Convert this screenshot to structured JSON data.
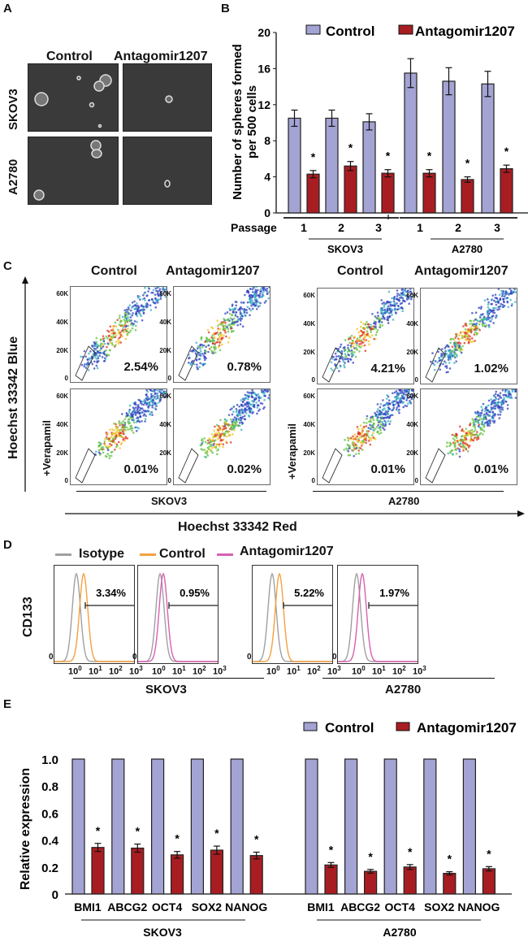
{
  "panels": {
    "A": {
      "label": "A",
      "columns": [
        "Control",
        "Antagomir1207"
      ],
      "rows": [
        "SKOV3",
        "A2780"
      ]
    },
    "B": {
      "label": "B",
      "passage_label": "Passage",
      "groups": [
        "SKOV3",
        "A2780"
      ]
    },
    "C": {
      "label": "C",
      "y_axis": "Hoechst 33342 Blue",
      "x_axis": "Hoechst 33342 Red",
      "columns": [
        "Control",
        "Antagomir1207",
        "Control",
        "Antagomir1207"
      ],
      "row_label_verapamil": "+Verapamil",
      "groups": [
        "SKOV3",
        "A2780"
      ],
      "y_ticks": [
        "60K",
        "40K",
        "20K",
        "0"
      ],
      "percentages": {
        "skov3_control": "2.54%",
        "skov3_antagomir": "0.78%",
        "skov3_control_verapamil": "0.01%",
        "skov3_antagomir_verapamil": "0.02%",
        "a2780_control": "4.21%",
        "a2780_antagomir": "1.02%",
        "a2780_control_verapamil": "0.01%",
        "a2780_antagomir_verapamil": "0.01%"
      }
    },
    "D": {
      "label": "D",
      "y_axis": "CD133",
      "legend": [
        "Isotype",
        "Control",
        "Antagomir1207"
      ],
      "legend_colors": [
        "#a0a0a0",
        "#f5a040",
        "#d860b0"
      ],
      "groups": [
        "SKOV3",
        "A2780"
      ],
      "x_ticks": [
        "10^0",
        "10^1",
        "10^2",
        "10^3"
      ],
      "zero_label": "0",
      "percentages": [
        "3.34%",
        "0.95%",
        "5.22%",
        "1.97%"
      ]
    },
    "E": {
      "label": "E",
      "groups": [
        "SKOV3",
        "A2780"
      ]
    }
  },
  "colors": {
    "control": "#a3a3d4",
    "antagomir": "#a81d22",
    "isotype": "#a0a0a0",
    "control_line": "#f5a040",
    "antagomir_line": "#d860b0"
  },
  "chart_data": [
    {
      "id": "B",
      "type": "bar",
      "title": "",
      "ylabel": "Number of spheres formed per 500 cells",
      "xlabel": "Passage",
      "ylim": [
        0,
        20
      ],
      "yticks": [
        0,
        4,
        8,
        12,
        16,
        20
      ],
      "legend": [
        "Control",
        "Antagomir1207"
      ],
      "legend_position": "top",
      "categories": [
        "1",
        "2",
        "3",
        "1",
        "2",
        "3"
      ],
      "category_groups": [
        "SKOV3",
        "SKOV3",
        "SKOV3",
        "A2780",
        "A2780",
        "A2780"
      ],
      "series": [
        {
          "name": "Control",
          "values": [
            10.5,
            10.5,
            10.1,
            15.5,
            14.6,
            14.3
          ],
          "errors": [
            0.9,
            0.9,
            0.9,
            1.6,
            1.5,
            1.4
          ]
        },
        {
          "name": "Antagomir1207",
          "values": [
            4.3,
            5.2,
            4.4,
            4.4,
            3.7,
            4.9
          ],
          "errors": [
            0.4,
            0.5,
            0.4,
            0.4,
            0.3,
            0.4
          ]
        }
      ],
      "significance": [
        "*",
        "*",
        "*",
        "*",
        "*",
        "*"
      ]
    },
    {
      "id": "E",
      "type": "bar",
      "title": "",
      "ylabel": "Relative expression",
      "xlabel": "",
      "ylim": [
        0,
        1.0
      ],
      "yticks": [
        "0",
        "0.2",
        "0.4",
        "0.6",
        "0.8",
        "1.0"
      ],
      "legend": [
        "Control",
        "Antagomir1207"
      ],
      "legend_position": "top-right",
      "categories": [
        "BMI1",
        "ABCG2",
        "OCT4",
        "SOX2",
        "NANOG",
        "BMI1",
        "ABCG2",
        "OCT4",
        "SOX2",
        "NANOG"
      ],
      "category_groups": [
        "SKOV3",
        "SKOV3",
        "SKOV3",
        "SKOV3",
        "SKOV3",
        "A2780",
        "A2780",
        "A2780",
        "A2780",
        "A2780"
      ],
      "series": [
        {
          "name": "Control",
          "values": [
            1.0,
            1.0,
            1.0,
            1.0,
            1.0,
            1.0,
            1.0,
            1.0,
            1.0,
            1.0
          ],
          "errors": [
            0,
            0,
            0,
            0,
            0,
            0,
            0,
            0,
            0,
            0
          ]
        },
        {
          "name": "Antagomir1207",
          "values": [
            0.345,
            0.34,
            0.29,
            0.325,
            0.285,
            0.215,
            0.168,
            0.2,
            0.153,
            0.187
          ],
          "errors": [
            0.03,
            0.03,
            0.025,
            0.03,
            0.025,
            0.018,
            0.014,
            0.018,
            0.012,
            0.016
          ]
        }
      ],
      "significance": [
        "*",
        "*",
        "*",
        "*",
        "*",
        "*",
        "*",
        "*",
        "*",
        "*"
      ]
    }
  ]
}
